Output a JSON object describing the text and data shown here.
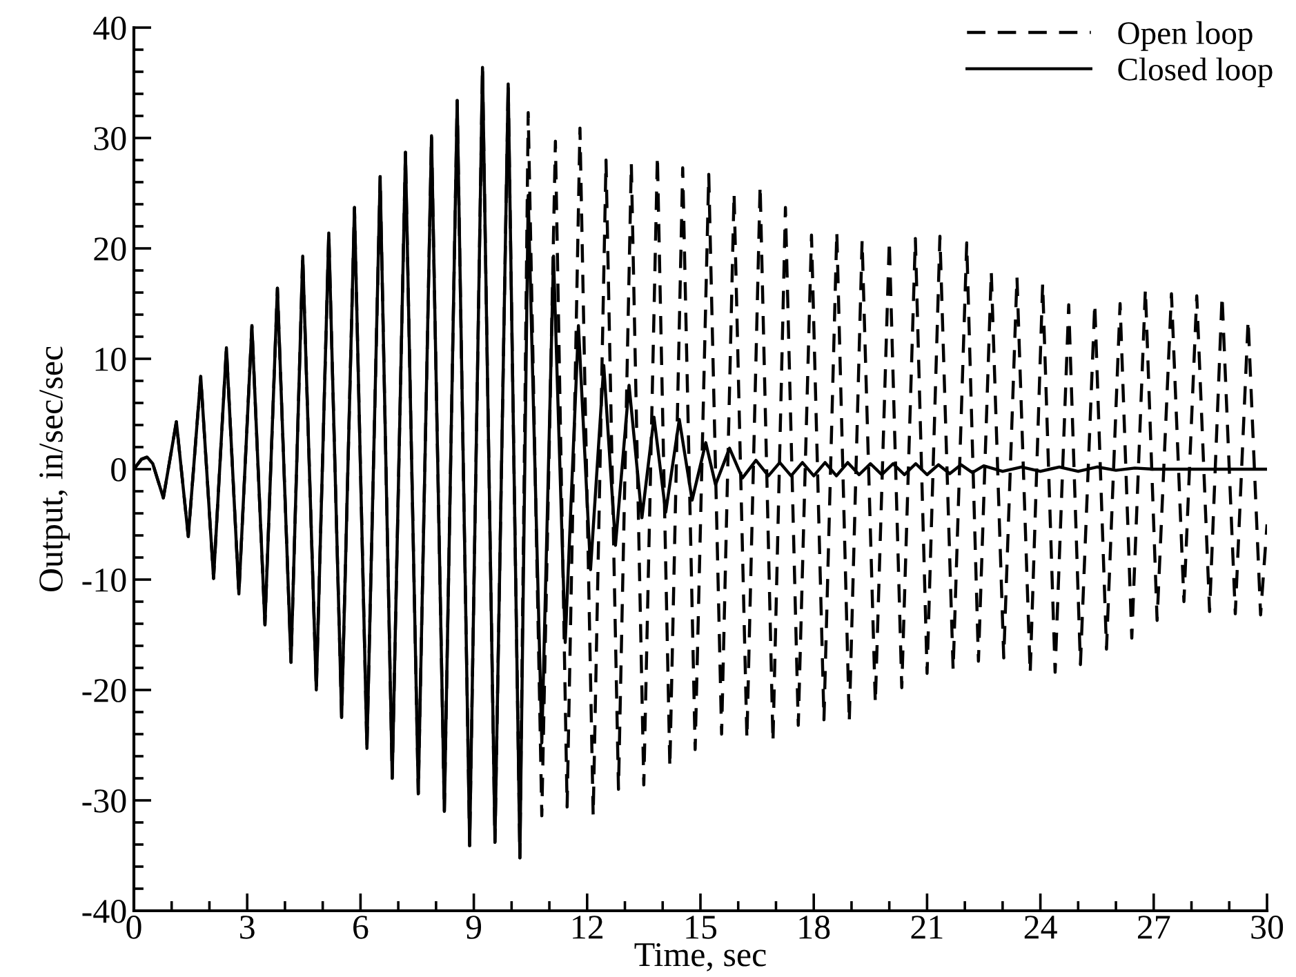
{
  "chart_data": {
    "type": "line",
    "xlabel": "Time, sec",
    "ylabel": "Output, in/sec/sec",
    "xlim": [
      0,
      30
    ],
    "xticks": [
      0,
      3,
      6,
      9,
      12,
      15,
      18,
      21,
      24,
      27,
      30
    ],
    "ylim": [
      -40,
      40
    ],
    "yticks": [
      -40,
      -30,
      -20,
      -10,
      0,
      10,
      20,
      30,
      40
    ],
    "grid": false,
    "legend": "top right",
    "marker": "none",
    "series": [
      {
        "name": "Open loop",
        "color": "#000000",
        "line_style": "dashed",
        "x": [
          0,
          0.2,
          0.35,
          0.5,
          0.78,
          1.125,
          1.44,
          1.77,
          2.11,
          2.45,
          2.78,
          3.125,
          3.47,
          3.8,
          4.16,
          4.47,
          4.83,
          5.16,
          5.5,
          5.84,
          6.17,
          6.52,
          6.84,
          7.19,
          7.53,
          7.88,
          8.22,
          8.56,
          8.89,
          9.23,
          9.56,
          9.91,
          10.22,
          10.44,
          10.8,
          11.16,
          11.47,
          11.81,
          12.16,
          12.5,
          12.83,
          13.17,
          13.5,
          13.86,
          14.19,
          14.53,
          14.86,
          15.22,
          15.56,
          15.89,
          16.23,
          16.58,
          16.92,
          17.25,
          17.59,
          17.94,
          18.27,
          18.61,
          18.94,
          19.28,
          19.63,
          20.0,
          20.33,
          20.69,
          21.0,
          21.34,
          21.69,
          22.05,
          22.36,
          22.7,
          23.03,
          23.38,
          23.73,
          24.06,
          24.39,
          24.75,
          25.06,
          25.44,
          25.75,
          26.11,
          26.42,
          26.78,
          27.09,
          27.47,
          27.8,
          28.14,
          28.48,
          28.81,
          29.16,
          29.5,
          29.83,
          30.0
        ],
        "values": [
          0,
          0.9,
          1.1,
          0.5,
          -2.6,
          4.3,
          -6.1,
          8.4,
          -9.9,
          11.0,
          -11.3,
          13.0,
          -14.1,
          16.4,
          -17.5,
          19.3,
          -20.0,
          21.4,
          -22.5,
          23.7,
          -25.3,
          26.5,
          -28.0,
          28.7,
          -29.4,
          30.2,
          -31.0,
          33.4,
          -34.1,
          36.4,
          -33.8,
          34.9,
          -35.2,
          32.3,
          -31.4,
          29.7,
          -30.6,
          30.9,
          -31.4,
          28.0,
          -29.0,
          27.7,
          -28.6,
          28.4,
          -27.0,
          27.3,
          -25.4,
          26.7,
          -24.0,
          25.0,
          -24.4,
          25.7,
          -24.7,
          23.7,
          -23.2,
          21.2,
          -22.7,
          21.5,
          -22.9,
          20.7,
          -21.2,
          20.7,
          -19.8,
          20.9,
          -18.5,
          21.1,
          -18.2,
          20.5,
          -17.4,
          17.9,
          -17.1,
          17.4,
          -18.5,
          16.8,
          -18.4,
          14.9,
          -17.7,
          15.0,
          -16.3,
          15.0,
          -15.3,
          16.3,
          -13.7,
          15.9,
          -12.0,
          15.7,
          -12.9,
          15.7,
          -13.1,
          13.5,
          -13.2,
          -5.0
        ]
      },
      {
        "name": "Closed loop",
        "color": "#000000",
        "line_style": "solid",
        "x": [
          0,
          0.2,
          0.35,
          0.5,
          0.78,
          1.125,
          1.44,
          1.77,
          2.11,
          2.45,
          2.78,
          3.125,
          3.47,
          3.8,
          4.16,
          4.47,
          4.83,
          5.16,
          5.5,
          5.84,
          6.17,
          6.52,
          6.84,
          7.19,
          7.53,
          7.88,
          8.22,
          8.56,
          8.89,
          9.23,
          9.56,
          9.91,
          10.22,
          10.44,
          10.8,
          11.11,
          11.42,
          11.77,
          12.09,
          12.44,
          12.75,
          13.11,
          13.45,
          13.77,
          14.08,
          14.44,
          14.78,
          15.14,
          15.4,
          15.77,
          16.11,
          16.47,
          16.8,
          17.1,
          17.4,
          17.7,
          18.0,
          18.3,
          18.6,
          18.9,
          19.2,
          19.5,
          19.8,
          20.1,
          20.4,
          20.7,
          21.0,
          21.3,
          21.6,
          21.9,
          22.2,
          22.5,
          23.0,
          23.5,
          24.0,
          24.5,
          25.0,
          25.5,
          26.0,
          26.5,
          27.0,
          28.0,
          30.0
        ],
        "values": [
          0,
          0.9,
          1.1,
          0.5,
          -2.6,
          4.3,
          -6.1,
          8.4,
          -9.9,
          11.0,
          -11.3,
          13.0,
          -14.1,
          16.4,
          -17.5,
          19.3,
          -20.0,
          21.4,
          -22.5,
          23.7,
          -25.3,
          26.5,
          -28.0,
          28.7,
          -29.4,
          30.2,
          -31.0,
          33.4,
          -34.1,
          36.4,
          -33.8,
          34.9,
          -35.2,
          24.8,
          -24.8,
          19.3,
          -15.7,
          13.0,
          -9.1,
          9.4,
          -6.9,
          7.6,
          -4.4,
          4.7,
          -3.9,
          4.5,
          -2.8,
          2.4,
          -1.4,
          1.9,
          -0.8,
          0.8,
          -0.6,
          0.6,
          -0.6,
          0.6,
          -0.6,
          0.6,
          -0.6,
          0.6,
          -0.5,
          0.5,
          -0.5,
          0.5,
          -0.5,
          0.5,
          -0.5,
          0.4,
          -0.4,
          0.4,
          -0.3,
          0.3,
          -0.2,
          0.2,
          -0.2,
          0.2,
          -0.2,
          0.2,
          -0.1,
          0.1,
          0,
          0,
          0
        ]
      }
    ]
  }
}
